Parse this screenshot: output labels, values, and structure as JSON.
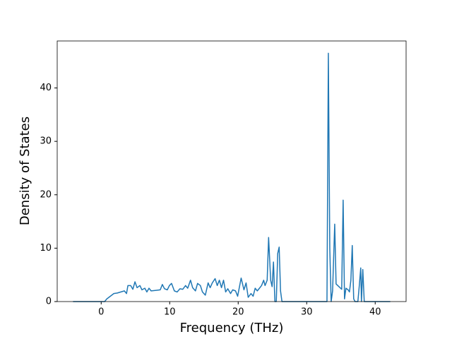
{
  "chart_data": {
    "type": "line",
    "xlabel": "Frequency (THz)",
    "ylabel": "Density of States",
    "x": [
      -4.11,
      0.51,
      0.82,
      1.85,
      2.36,
      2.87,
      3.39,
      3.7,
      3.9,
      4.31,
      4.62,
      4.93,
      5.24,
      5.65,
      5.95,
      6.37,
      6.67,
      6.98,
      7.29,
      8.01,
      8.62,
      8.93,
      9.24,
      9.65,
      9.96,
      10.27,
      10.68,
      11.09,
      11.5,
      11.91,
      12.32,
      12.63,
      13.04,
      13.35,
      13.76,
      14.07,
      14.48,
      14.78,
      15.2,
      15.61,
      15.91,
      16.22,
      16.63,
      16.94,
      17.25,
      17.56,
      17.86,
      18.17,
      18.48,
      18.89,
      19.2,
      19.61,
      19.92,
      20.43,
      20.84,
      21.15,
      21.46,
      21.87,
      22.18,
      22.48,
      22.79,
      23.1,
      23.41,
      23.72,
      23.92,
      24.23,
      24.44,
      24.74,
      24.95,
      25.15,
      25.36,
      25.56,
      25.77,
      25.98,
      26.18,
      26.39,
      32.96,
      33.16,
      33.37,
      33.57,
      33.78,
      34.09,
      34.29,
      34.7,
      35.11,
      35.32,
      35.52,
      35.73,
      36.04,
      36.24,
      36.45,
      36.65,
      36.86,
      37.06,
      37.47,
      37.68,
      37.89,
      37.99,
      38.19,
      38.4,
      42.2
    ],
    "series": [
      {
        "color": "#1f77b4",
        "values": [
          0,
          0,
          0.5,
          1.5,
          1.6,
          1.8,
          2.0,
          1.5,
          3.0,
          3.0,
          2.3,
          3.7,
          2.6,
          3.0,
          2.2,
          2.5,
          1.8,
          2.5,
          2.0,
          2.1,
          2.2,
          3.2,
          2.4,
          2.2,
          3.0,
          3.4,
          2.0,
          1.8,
          2.4,
          2.3,
          3.0,
          2.5,
          4.0,
          2.6,
          2.0,
          3.4,
          3.0,
          1.8,
          1.2,
          3.5,
          2.6,
          3.5,
          4.3,
          3.0,
          4.0,
          2.6,
          4.0,
          1.8,
          2.4,
          1.5,
          2.2,
          2.0,
          1.0,
          4.4,
          2.2,
          3.5,
          0.8,
          1.5,
          1.0,
          2.5,
          2.0,
          2.5,
          3.0,
          4.0,
          3.0,
          4.0,
          12.0,
          4.0,
          2.8,
          7.4,
          0,
          0,
          9.0,
          10.2,
          2.0,
          0,
          0,
          46.5,
          10,
          0,
          2,
          14.5,
          3.3,
          2.8,
          2.3,
          19.0,
          0.5,
          2.5,
          2.2,
          1.8,
          4.0,
          10.5,
          0.5,
          0,
          0,
          3.0,
          6.3,
          0,
          6.0,
          0,
          0
        ]
      }
    ],
    "xlim": [
      -6.42,
      44.51
    ],
    "ylim": [
      0,
      48.8
    ],
    "xticks": [
      0,
      10,
      20,
      30,
      40
    ],
    "yticks": [
      0,
      10,
      20,
      30,
      40
    ]
  }
}
